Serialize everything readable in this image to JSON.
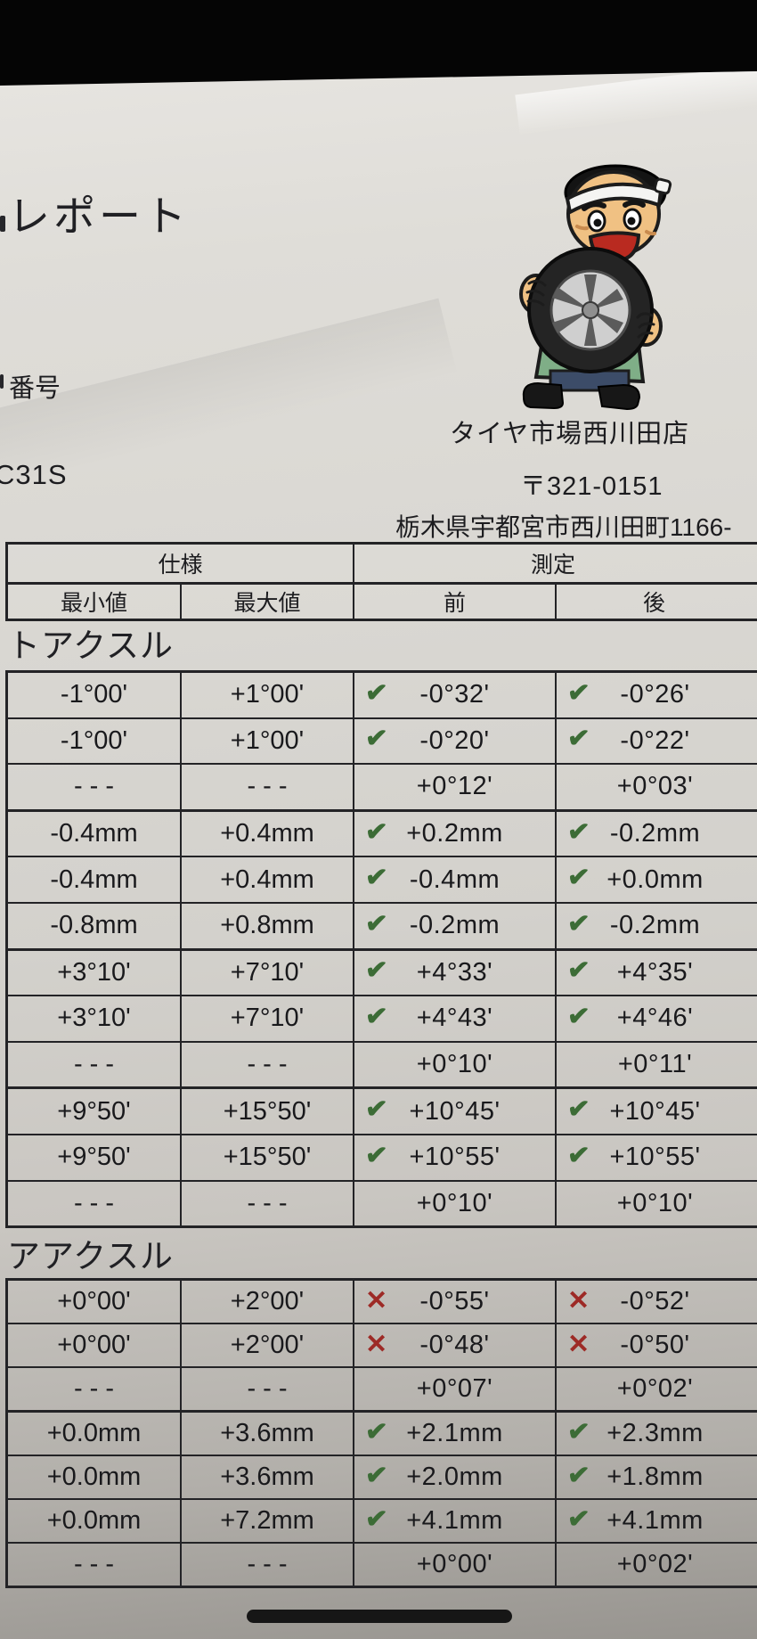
{
  "photo": {
    "title_partial": "レポート",
    "number_label": "番号",
    "model_code": "C31S",
    "shop": {
      "name": "タイヤ市場西川田店",
      "postal_code": "〒321-0151",
      "address": "栃木県宇都宮市西川田町1166-"
    },
    "mascot_icon": "man-with-headband-holding-tire"
  },
  "marks": {
    "check_glyph": "✔",
    "cross_glyph": "✕",
    "check_color": "#3c6c36",
    "cross_color": "#9d2a26"
  },
  "table": {
    "headers": {
      "spec": "仕様",
      "measurement": "測定",
      "min": "最小値",
      "max": "最大値",
      "front": "前",
      "rear": "後"
    },
    "sections": [
      {
        "title": "トアクスル",
        "rows": [
          {
            "min": "-1°00'",
            "max": "+1°00'",
            "front_mark": "check",
            "front": "-0°32'",
            "rear_mark": "check",
            "rear": "-0°26'"
          },
          {
            "min": "-1°00'",
            "max": "+1°00'",
            "front_mark": "check",
            "front": "-0°20'",
            "rear_mark": "check",
            "rear": "-0°22'"
          },
          {
            "min": "- - -",
            "max": "- - -",
            "front_mark": "none",
            "front": "+0°12'",
            "rear_mark": "none",
            "rear": "+0°03'"
          },
          {
            "min": "-0.4mm",
            "max": "+0.4mm",
            "front_mark": "check",
            "front": "+0.2mm",
            "rear_mark": "check",
            "rear": "-0.2mm",
            "thick_top": true
          },
          {
            "min": "-0.4mm",
            "max": "+0.4mm",
            "front_mark": "check",
            "front": "-0.4mm",
            "rear_mark": "check",
            "rear": "+0.0mm"
          },
          {
            "min": "-0.8mm",
            "max": "+0.8mm",
            "front_mark": "check",
            "front": "-0.2mm",
            "rear_mark": "check",
            "rear": "-0.2mm"
          },
          {
            "min": "+3°10'",
            "max": "+7°10'",
            "front_mark": "check",
            "front": "+4°33'",
            "rear_mark": "check",
            "rear": "+4°35'",
            "thick_top": true
          },
          {
            "min": "+3°10'",
            "max": "+7°10'",
            "front_mark": "check",
            "front": "+4°43'",
            "rear_mark": "check",
            "rear": "+4°46'"
          },
          {
            "min": "- - -",
            "max": "- - -",
            "front_mark": "none",
            "front": "+0°10'",
            "rear_mark": "none",
            "rear": "+0°11'"
          },
          {
            "min": "+9°50'",
            "max": "+15°50'",
            "front_mark": "check",
            "front": "+10°45'",
            "rear_mark": "check",
            "rear": "+10°45'",
            "thick_top": true
          },
          {
            "min": "+9°50'",
            "max": "+15°50'",
            "front_mark": "check",
            "front": "+10°55'",
            "rear_mark": "check",
            "rear": "+10°55'"
          },
          {
            "min": "- - -",
            "max": "- - -",
            "front_mark": "none",
            "front": "+0°10'",
            "rear_mark": "none",
            "rear": "+0°10'"
          }
        ]
      },
      {
        "title": "アアクスル",
        "rows": [
          {
            "min": "+0°00'",
            "max": "+2°00'",
            "front_mark": "x",
            "front": "-0°55'",
            "rear_mark": "x",
            "rear": "-0°52'"
          },
          {
            "min": "+0°00'",
            "max": "+2°00'",
            "front_mark": "x",
            "front": "-0°48'",
            "rear_mark": "x",
            "rear": "-0°50'"
          },
          {
            "min": "- - -",
            "max": "- - -",
            "front_mark": "none",
            "front": "+0°07'",
            "rear_mark": "none",
            "rear": "+0°02'"
          },
          {
            "min": "+0.0mm",
            "max": "+3.6mm",
            "front_mark": "check",
            "front": "+2.1mm",
            "rear_mark": "check",
            "rear": "+2.3mm",
            "thick_top": true
          },
          {
            "min": "+0.0mm",
            "max": "+3.6mm",
            "front_mark": "check",
            "front": "+2.0mm",
            "rear_mark": "check",
            "rear": "+1.8mm"
          },
          {
            "min": "+0.0mm",
            "max": "+7.2mm",
            "front_mark": "check",
            "front": "+4.1mm",
            "rear_mark": "check",
            "rear": "+4.1mm"
          },
          {
            "min": "- - -",
            "max": "- - -",
            "front_mark": "none",
            "front": "+0°00'",
            "rear_mark": "none",
            "rear": "+0°02'"
          }
        ]
      }
    ]
  }
}
